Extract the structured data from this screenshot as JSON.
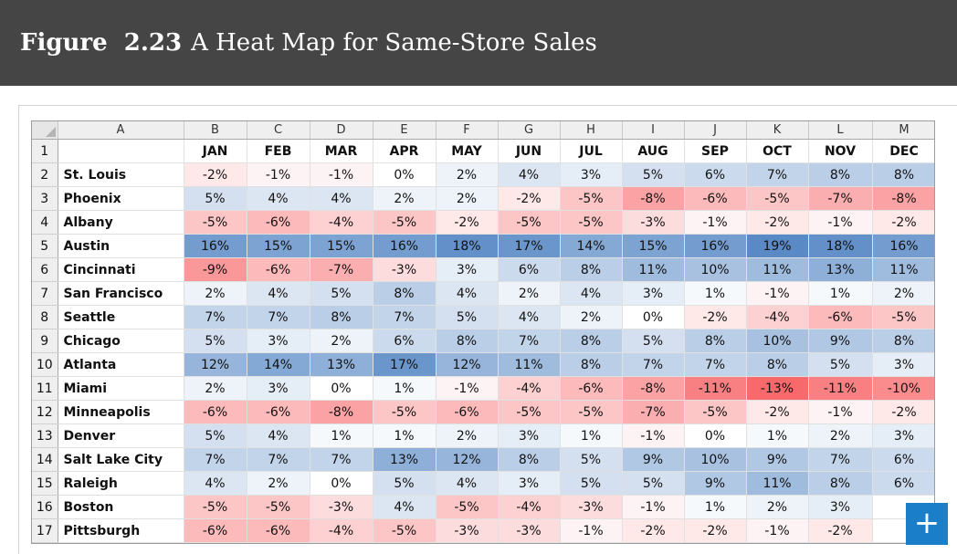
{
  "header": {
    "figure_label": "Figure  2.23",
    "figure_title": "A Heat Map for Same-Store Sales"
  },
  "expand_button": {
    "label": "+"
  },
  "spreadsheet": {
    "corner_icon": "select-all-triangle-icon",
    "column_letters": [
      "A",
      "B",
      "C",
      "D",
      "E",
      "F",
      "G",
      "H",
      "I",
      "J",
      "K",
      "L",
      "M"
    ],
    "row_numbers": [
      "1",
      "2",
      "3",
      "4",
      "5",
      "6",
      "7",
      "8",
      "9",
      "10",
      "11",
      "12",
      "13",
      "14",
      "15",
      "16",
      "17"
    ]
  },
  "chart_data": {
    "type": "heatmap",
    "title": "",
    "x_categories": [
      "JAN",
      "FEB",
      "MAR",
      "APR",
      "MAY",
      "JUN",
      "JUL",
      "AUG",
      "SEP",
      "OCT",
      "NOV",
      "DEC"
    ],
    "y_categories": [
      "St. Louis",
      "Phoenix",
      "Albany",
      "Austin",
      "Cincinnati",
      "San Francisco",
      "Seattle",
      "Chicago",
      "Atlanta",
      "Miami",
      "Minneapolis",
      "Denver",
      "Salt Lake City",
      "Raleigh",
      "Boston",
      "Pittsburgh"
    ],
    "values": [
      [
        "-2%",
        "-1%",
        "-1%",
        "0%",
        "2%",
        "4%",
        "3%",
        "5%",
        "6%",
        "7%",
        "8%",
        "8%"
      ],
      [
        "5%",
        "4%",
        "4%",
        "2%",
        "2%",
        "-2%",
        "-5%",
        "-8%",
        "-6%",
        "-5%",
        "-7%",
        "-8%"
      ],
      [
        "-5%",
        "-6%",
        "-4%",
        "-5%",
        "-2%",
        "-5%",
        "-5%",
        "-3%",
        "-1%",
        "-2%",
        "-1%",
        "-2%"
      ],
      [
        "16%",
        "15%",
        "15%",
        "16%",
        "18%",
        "17%",
        "14%",
        "15%",
        "16%",
        "19%",
        "18%",
        "16%"
      ],
      [
        "-9%",
        "-6%",
        "-7%",
        "-3%",
        "3%",
        "6%",
        "8%",
        "11%",
        "10%",
        "11%",
        "13%",
        "11%"
      ],
      [
        "2%",
        "4%",
        "5%",
        "8%",
        "4%",
        "2%",
        "4%",
        "3%",
        "1%",
        "-1%",
        "1%",
        "2%"
      ],
      [
        "7%",
        "7%",
        "8%",
        "7%",
        "5%",
        "4%",
        "2%",
        "0%",
        "-2%",
        "-4%",
        "-6%",
        "-5%"
      ],
      [
        "5%",
        "3%",
        "2%",
        "6%",
        "8%",
        "7%",
        "8%",
        "5%",
        "8%",
        "10%",
        "9%",
        "8%"
      ],
      [
        "12%",
        "14%",
        "13%",
        "17%",
        "12%",
        "11%",
        "8%",
        "7%",
        "7%",
        "8%",
        "5%",
        "3%"
      ],
      [
        "2%",
        "3%",
        "0%",
        "1%",
        "-1%",
        "-4%",
        "-6%",
        "-8%",
        "-11%",
        "-13%",
        "-11%",
        "-10%"
      ],
      [
        "-6%",
        "-6%",
        "-8%",
        "-5%",
        "-6%",
        "-5%",
        "-5%",
        "-7%",
        "-5%",
        "-2%",
        "-1%",
        "-2%"
      ],
      [
        "5%",
        "4%",
        "1%",
        "1%",
        "2%",
        "3%",
        "1%",
        "-1%",
        "0%",
        "1%",
        "2%",
        "3%"
      ],
      [
        "7%",
        "7%",
        "7%",
        "13%",
        "12%",
        "8%",
        "5%",
        "9%",
        "10%",
        "9%",
        "7%",
        "6%"
      ],
      [
        "4%",
        "2%",
        "0%",
        "5%",
        "4%",
        "3%",
        "5%",
        "5%",
        "9%",
        "11%",
        "8%",
        "6%"
      ],
      [
        "-5%",
        "-5%",
        "-3%",
        "4%",
        "-5%",
        "-4%",
        "-3%",
        "-1%",
        "1%",
        "2%",
        "3%",
        ""
      ],
      [
        "-6%",
        "-6%",
        "-4%",
        "-5%",
        "-3%",
        "-3%",
        "-1%",
        "-2%",
        "-2%",
        "-1%",
        "-2%",
        ""
      ]
    ],
    "color_scale": {
      "min_color": "#f8696b",
      "mid_color": "#ffffff",
      "max_color": "#5a8ac6",
      "min": -13,
      "mid": 0,
      "max": 19
    }
  }
}
